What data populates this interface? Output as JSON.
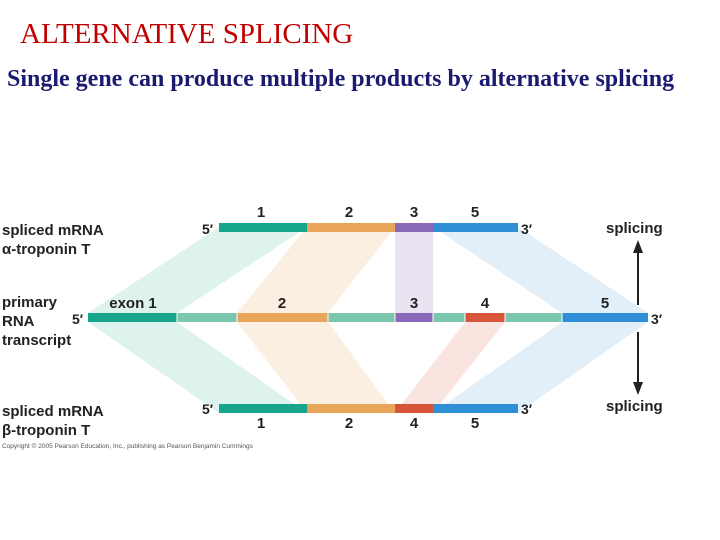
{
  "slide": {
    "title": "ALTERNATIVE SPLICING",
    "subtitle": "Single gene can produce multiple products by alternative splicing"
  },
  "diagram": {
    "top_label": [
      "spliced mRNA",
      "α-troponin T"
    ],
    "middle_label": [
      "primary",
      "RNA",
      "transcript"
    ],
    "bottom_label": [
      "spliced mRNA",
      "β-troponin T"
    ],
    "five_prime": "5′",
    "three_prime": "3′",
    "splicing_label": "splicing",
    "top_exons": [
      "1",
      "2",
      "3",
      "5"
    ],
    "bottom_exons": [
      "1",
      "2",
      "4",
      "5"
    ],
    "primary_exons": [
      "exon 1",
      "2",
      "3",
      "4",
      "5"
    ],
    "copyright": "Copyright © 2005 Pearson Education, Inc., publishing as Pearson Benjamin Cummings",
    "colors": {
      "exon1": "#16a58a",
      "exon2": "#e9a55a",
      "exon3": "#8a6ab8",
      "exon4": "#d9553a",
      "exon5": "#2f8fd6",
      "intron": "#7dc6ae",
      "arrow": "#222222"
    }
  }
}
